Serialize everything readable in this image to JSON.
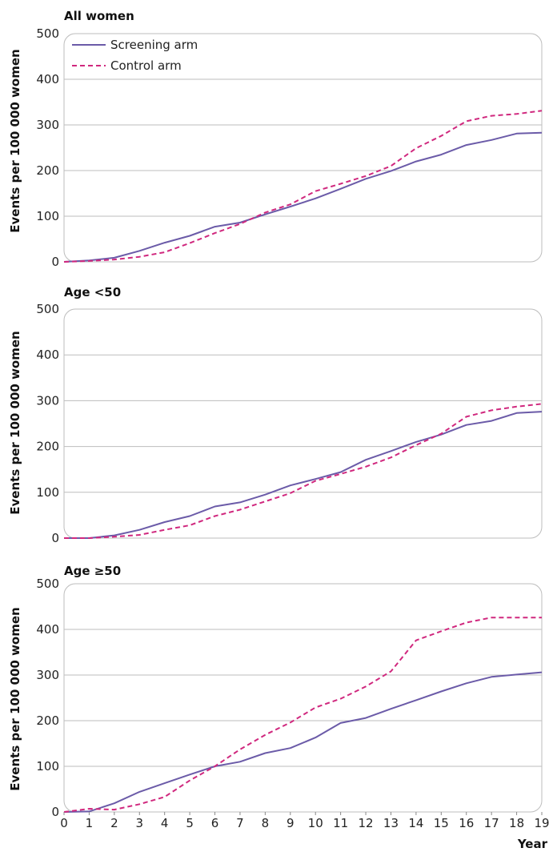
{
  "chart_data": {
    "type": "line",
    "xlabel": "Year",
    "x": [
      0,
      1,
      2,
      3,
      4,
      5,
      6,
      7,
      8,
      9,
      10,
      11,
      12,
      13,
      14,
      15,
      16,
      17,
      18,
      19
    ],
    "ylim": [
      0,
      500
    ],
    "yticks": [
      0,
      100,
      200,
      300,
      400,
      500
    ],
    "legend": {
      "placement": "top-left",
      "entries": [
        "Screening arm",
        "Control arm"
      ]
    },
    "colors": {
      "screening": "#6b5ba8",
      "control": "#d0287e",
      "grid": "#bdbdbd"
    },
    "panels": [
      {
        "title": "All women",
        "ylabel": "Events per 100 000 women",
        "series": [
          {
            "name": "Screening arm",
            "style": "solid",
            "values": [
              0,
              3,
              9,
              24,
              42,
              57,
              77,
              86,
              104,
              121,
              139,
              160,
              182,
              199,
              220,
              235,
              256,
              267,
              281,
              283
            ]
          },
          {
            "name": "Control arm",
            "style": "dashed",
            "values": [
              0,
              2,
              5,
              11,
              21,
              41,
              63,
              83,
              108,
              126,
              155,
              171,
              188,
              210,
              249,
              276,
              308,
              320,
              324,
              331
            ]
          }
        ]
      },
      {
        "title": "Age <50",
        "ylabel": "Events per 100 000 women",
        "series": [
          {
            "name": "Screening arm",
            "style": "solid",
            "values": [
              0,
              0,
              6,
              18,
              35,
              48,
              69,
              78,
              95,
              115,
              129,
              144,
              171,
              190,
              210,
              226,
              247,
              256,
              273,
              276
            ]
          },
          {
            "name": "Control arm",
            "style": "dashed",
            "values": [
              0,
              0,
              3,
              7,
              18,
              28,
              48,
              62,
              80,
              98,
              125,
              140,
              156,
              176,
              203,
              228,
              265,
              279,
              287,
              293
            ]
          }
        ]
      },
      {
        "title": "Age ≥50",
        "ylabel": "Events per 100 000 women",
        "series": [
          {
            "name": "Screening arm",
            "style": "solid",
            "values": [
              0,
              1,
              19,
              44,
              63,
              82,
              100,
              110,
              129,
              140,
              163,
              195,
              206,
              226,
              245,
              264,
              282,
              296,
              301,
              306
            ]
          },
          {
            "name": "Control arm",
            "style": "dashed",
            "values": [
              0,
              7,
              5,
              17,
              33,
              69,
              100,
              137,
              169,
              196,
              229,
              248,
              275,
              308,
              376,
              396,
              415,
              426,
              426,
              426
            ]
          }
        ]
      }
    ]
  }
}
